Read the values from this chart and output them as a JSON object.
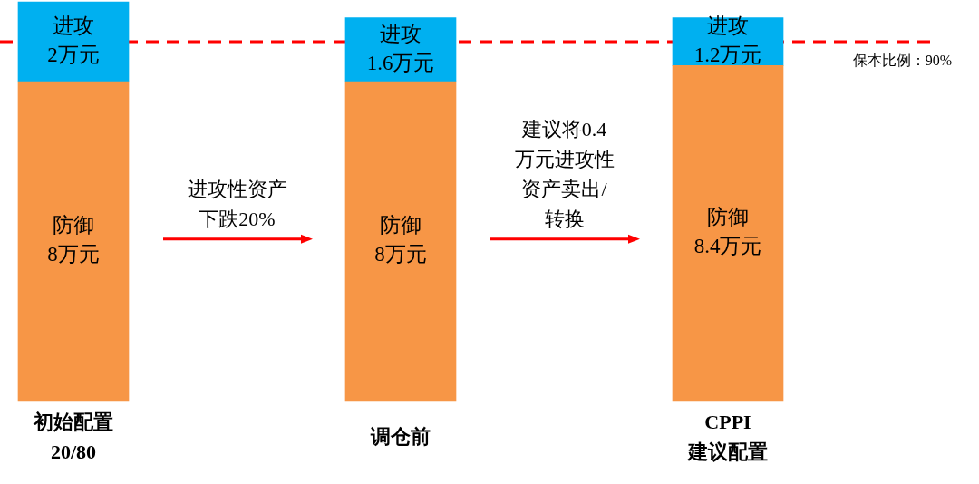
{
  "chart_data": {
    "type": "bar",
    "stacked": true,
    "categories": [
      "初始配置\n20/80",
      "调仓前",
      "CPPI\n建议配置"
    ],
    "series": [
      {
        "name": "防御",
        "color": "#f79646",
        "values": [
          8,
          8,
          8.4
        ],
        "value_labels": [
          "8万元",
          "8万元",
          "8.4万元"
        ]
      },
      {
        "name": "进攻",
        "color": "#00b0f0",
        "values": [
          2,
          1.6,
          1.2
        ],
        "value_labels": [
          "2万元",
          "1.6万元",
          "1.2万元"
        ]
      }
    ],
    "tick_labels": "x",
    "grid": false,
    "legend": false,
    "ref_lines": [
      {
        "axis": "y",
        "value": 9,
        "label": "保本比例：90%",
        "color": "#ff0000",
        "line_style": "dashed"
      }
    ],
    "annotations": [
      "进攻性资产下跌20%",
      "建议将0.4万元进攻性资产卖出/转换"
    ]
  }
}
